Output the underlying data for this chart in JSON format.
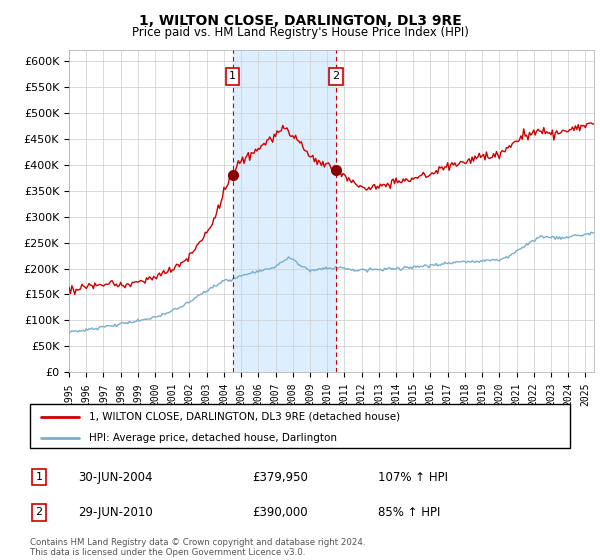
{
  "title": "1, WILTON CLOSE, DARLINGTON, DL3 9RE",
  "subtitle": "Price paid vs. HM Land Registry's House Price Index (HPI)",
  "legend_property": "1, WILTON CLOSE, DARLINGTON, DL3 9RE (detached house)",
  "legend_hpi": "HPI: Average price, detached house, Darlington",
  "annotation1_date": "30-JUN-2004",
  "annotation1_price": "£379,950",
  "annotation1_hpi": "107% ↑ HPI",
  "annotation2_date": "29-JUN-2010",
  "annotation2_price": "£390,000",
  "annotation2_hpi": "85% ↑ HPI",
  "footer": "Contains HM Land Registry data © Crown copyright and database right 2024.\nThis data is licensed under the Open Government Licence v3.0.",
  "property_color": "#cc0000",
  "hpi_color": "#7aadcf",
  "shade_color": "#ddeeff",
  "vline_color": "#cc0000",
  "ylim": [
    0,
    620000
  ],
  "yticks": [
    0,
    50000,
    100000,
    150000,
    200000,
    250000,
    300000,
    350000,
    400000,
    450000,
    500000,
    550000,
    600000
  ],
  "sale1_x": 2004.5,
  "sale2_x": 2010.5,
  "sale1_y": 379950,
  "sale2_y": 390000,
  "xmin": 1995.0,
  "xmax": 2025.5
}
